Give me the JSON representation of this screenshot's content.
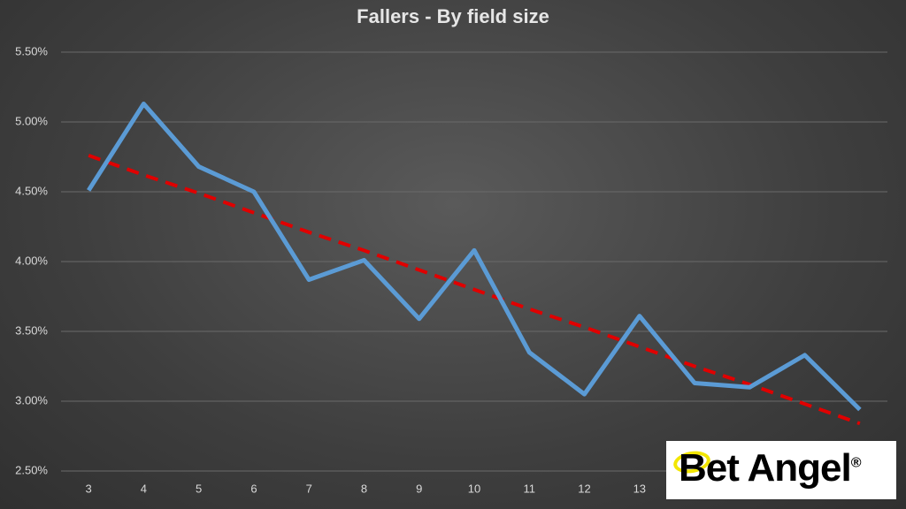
{
  "chart_data": {
    "type": "line",
    "title": "Fallers - By field size",
    "categories": [
      "3",
      "4",
      "5",
      "6",
      "7",
      "8",
      "9",
      "10",
      "11",
      "12",
      "13",
      null,
      null,
      null,
      null
    ],
    "series": [
      {
        "color": "#5b9bd5",
        "dashed": false,
        "values": [
          4.51,
          5.13,
          4.68,
          4.5,
          3.87,
          4.01,
          3.59,
          4.08,
          3.35,
          3.05,
          3.61,
          3.13,
          3.1,
          3.33,
          2.94
        ]
      },
      {
        "color": "#e00000",
        "dashed": true,
        "values": [
          4.76,
          4.62,
          4.49,
          4.35,
          4.21,
          4.08,
          3.94,
          3.8,
          3.66,
          3.53,
          3.39,
          3.25,
          3.12,
          2.98,
          2.84
        ]
      }
    ],
    "ylim": [
      2.5,
      5.5
    ],
    "yticks": [
      {
        "value": 2.5,
        "label": "2.50%"
      },
      {
        "value": 3.0,
        "label": "3.00%"
      },
      {
        "value": 3.5,
        "label": "3.50%"
      },
      {
        "value": 4.0,
        "label": "4.00%"
      },
      {
        "value": 4.5,
        "label": "4.50%"
      },
      {
        "value": 5.0,
        "label": "5.00%"
      },
      {
        "value": 5.5,
        "label": "5.50%"
      }
    ],
    "grid": true
  },
  "logo": {
    "text": "Bet Angel",
    "mark": "®"
  }
}
